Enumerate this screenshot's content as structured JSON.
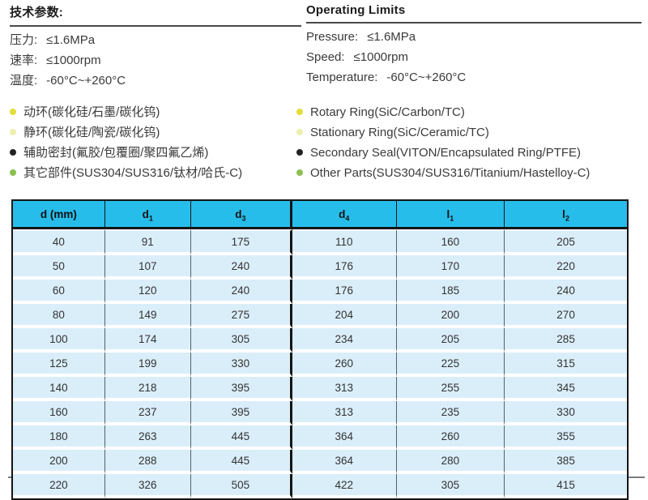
{
  "tech_specs": {
    "zh": {
      "title": "技术参数:",
      "items": [
        {
          "label": "压力:",
          "value": "≤1.6MPa"
        },
        {
          "label": "速率:",
          "value": "≤1000rpm"
        },
        {
          "label": "温度:",
          "value": "-60°C~+260°C"
        }
      ]
    },
    "en": {
      "title": "Operating Limits",
      "items": [
        {
          "label": "Pressure:",
          "value": "≤1.6MPa"
        },
        {
          "label": "Speed:",
          "value": "≤1000rpm"
        },
        {
          "label": "Temperature:",
          "value": "-60°C~+260°C"
        }
      ]
    }
  },
  "materials": {
    "bullet_colors": [
      "#e2dd3a",
      "#edefae",
      "#222222",
      "#8cbf52"
    ],
    "zh": [
      "动环(碳化硅/石墨/碳化钨)",
      "静环(碳化硅/陶瓷/碳化钨)",
      "辅助密封(氟胶/包覆圈/聚四氟乙烯)",
      "其它部件(SUS304/SUS316/钛材/哈氏-C)"
    ],
    "en": [
      "Rotary Ring(SiC/Carbon/TC)",
      "Stationary Ring(SiC/Ceramic/TC)",
      "Secondary Seal(VITON/Encapsulated Ring/PTFE)",
      "Other Parts(SUS304/SUS316/Titanium/Hastelloy-C)"
    ]
  },
  "dimension_table": {
    "header_bg": "#27bdeb",
    "row_bg": "#daeefa",
    "headers": [
      {
        "base": "d",
        "sub": "",
        "suffix": " (mm)"
      },
      {
        "base": "d",
        "sub": "1",
        "suffix": ""
      },
      {
        "base": "d",
        "sub": "3",
        "suffix": ""
      },
      {
        "base": "d",
        "sub": "4",
        "suffix": ""
      },
      {
        "base": "l",
        "sub": "1",
        "suffix": ""
      },
      {
        "base": "l",
        "sub": "2",
        "suffix": ""
      }
    ],
    "rows": [
      [
        "40",
        "91",
        "175",
        "110",
        "160",
        "205"
      ],
      [
        "50",
        "107",
        "240",
        "176",
        "170",
        "220"
      ],
      [
        "60",
        "120",
        "240",
        "176",
        "185",
        "240"
      ],
      [
        "80",
        "149",
        "275",
        "204",
        "200",
        "270"
      ],
      [
        "100",
        "174",
        "305",
        "234",
        "205",
        "285"
      ],
      [
        "125",
        "199",
        "330",
        "260",
        "225",
        "315"
      ],
      [
        "140",
        "218",
        "395",
        "313",
        "255",
        "345"
      ],
      [
        "160",
        "237",
        "395",
        "313",
        "235",
        "330"
      ],
      [
        "180",
        "263",
        "445",
        "364",
        "260",
        "355"
      ],
      [
        "200",
        "288",
        "445",
        "364",
        "280",
        "385"
      ],
      [
        "220",
        "326",
        "505",
        "422",
        "305",
        "415"
      ]
    ]
  }
}
